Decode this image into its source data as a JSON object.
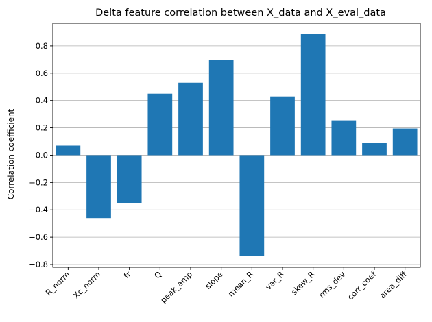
{
  "chart_data": {
    "type": "bar",
    "title": "Delta feature correlation between X_data and X_eval_data",
    "xlabel": "",
    "ylabel": "Correlation coefficient",
    "categories": [
      "R_norm",
      "Xc_norm",
      "fr",
      "Q",
      "peak_amp",
      "slope",
      "mean_R",
      "var_R",
      "skew_R",
      "rms_dev",
      "corr_coef",
      "area_diff"
    ],
    "values": [
      0.07,
      -0.46,
      -0.35,
      0.45,
      0.53,
      0.695,
      -0.735,
      0.43,
      0.885,
      0.255,
      0.09,
      0.195
    ],
    "ylim": [
      -0.82,
      0.965
    ],
    "yticks": [
      -0.8,
      -0.6,
      -0.4,
      -0.2,
      0.0,
      0.2,
      0.4,
      0.6,
      0.8
    ],
    "ytick_labels": [
      "−0.8",
      "−0.6",
      "−0.4",
      "−0.2",
      "0.0",
      "0.2",
      "0.4",
      "0.6",
      "0.8"
    ],
    "grid": "y-major",
    "bar_color": "#1f77b4"
  }
}
